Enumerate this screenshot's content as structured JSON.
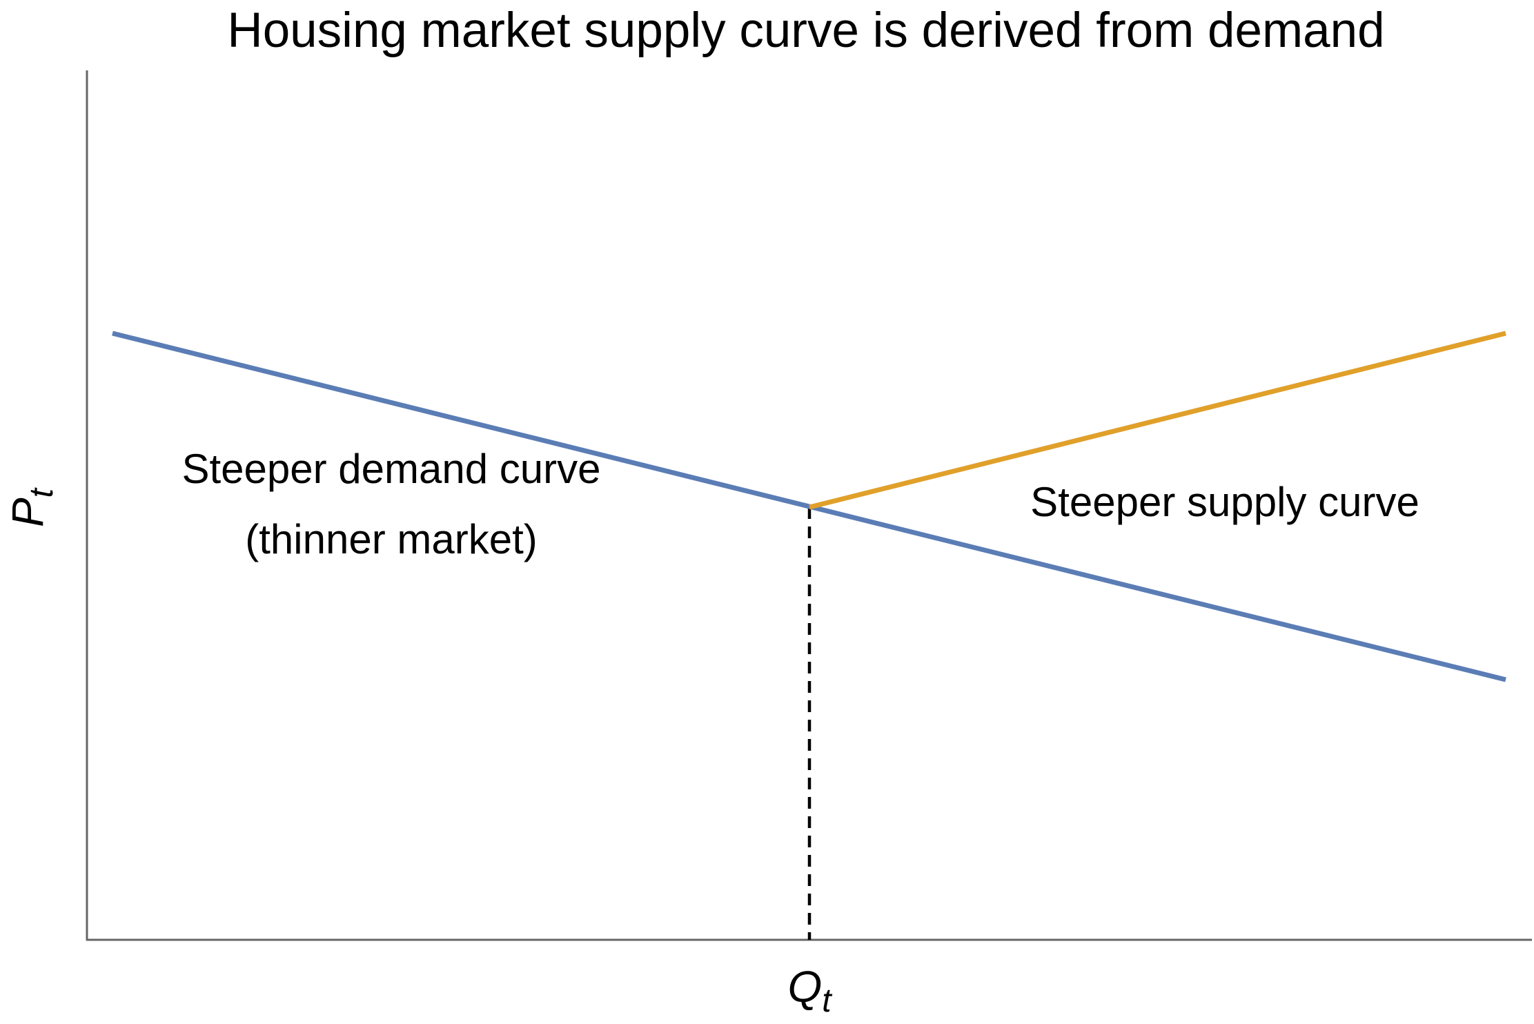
{
  "title": "Housing market supply curve is derived from demand",
  "y_label": {
    "main": "P",
    "sub": "t"
  },
  "x_label": {
    "main": "Q",
    "sub": "t"
  },
  "annotations": {
    "demand": [
      "Steeper demand curve",
      "(thinner market)"
    ],
    "supply": "Steeper supply curve"
  }
}
